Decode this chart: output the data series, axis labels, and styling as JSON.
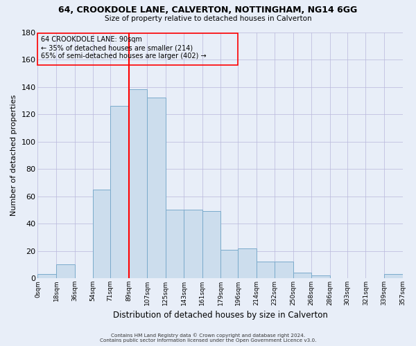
{
  "title_line1": "64, CROOKDOLE LANE, CALVERTON, NOTTINGHAM, NG14 6GG",
  "title_line2": "Size of property relative to detached houses in Calverton",
  "xlabel": "Distribution of detached houses by size in Calverton",
  "ylabel": "Number of detached properties",
  "bin_edges": [
    0,
    18,
    36,
    54,
    71,
    89,
    107,
    125,
    143,
    161,
    179,
    196,
    214,
    232,
    250,
    268,
    286,
    303,
    321,
    339,
    357
  ],
  "bin_labels": [
    "0sqm",
    "18sqm",
    "36sqm",
    "54sqm",
    "71sqm",
    "89sqm",
    "107sqm",
    "125sqm",
    "143sqm",
    "161sqm",
    "179sqm",
    "196sqm",
    "214sqm",
    "232sqm",
    "250sqm",
    "268sqm",
    "286sqm",
    "303sqm",
    "321sqm",
    "339sqm",
    "357sqm"
  ],
  "counts": [
    3,
    10,
    0,
    65,
    126,
    138,
    132,
    50,
    50,
    49,
    21,
    22,
    12,
    12,
    4,
    2,
    0,
    0,
    0,
    3
  ],
  "bar_facecolor": "#ccdded",
  "bar_edgecolor": "#7aaacb",
  "grid_color": "#bbbbdd",
  "vline_x": 89,
  "vline_color": "red",
  "ylim": [
    0,
    180
  ],
  "yticks": [
    0,
    20,
    40,
    60,
    80,
    100,
    120,
    140,
    160,
    180
  ],
  "annotation_title": "64 CROOKDOLE LANE: 90sqm",
  "annotation_line1": "← 35% of detached houses are smaller (214)",
  "annotation_line2": "65% of semi-detached houses are larger (402) →",
  "footer_line1": "Contains HM Land Registry data © Crown copyright and database right 2024.",
  "footer_line2": "Contains public sector information licensed under the Open Government Licence v3.0.",
  "background_color": "#e8eef8",
  "plot_bg_color": "#e8eef8"
}
